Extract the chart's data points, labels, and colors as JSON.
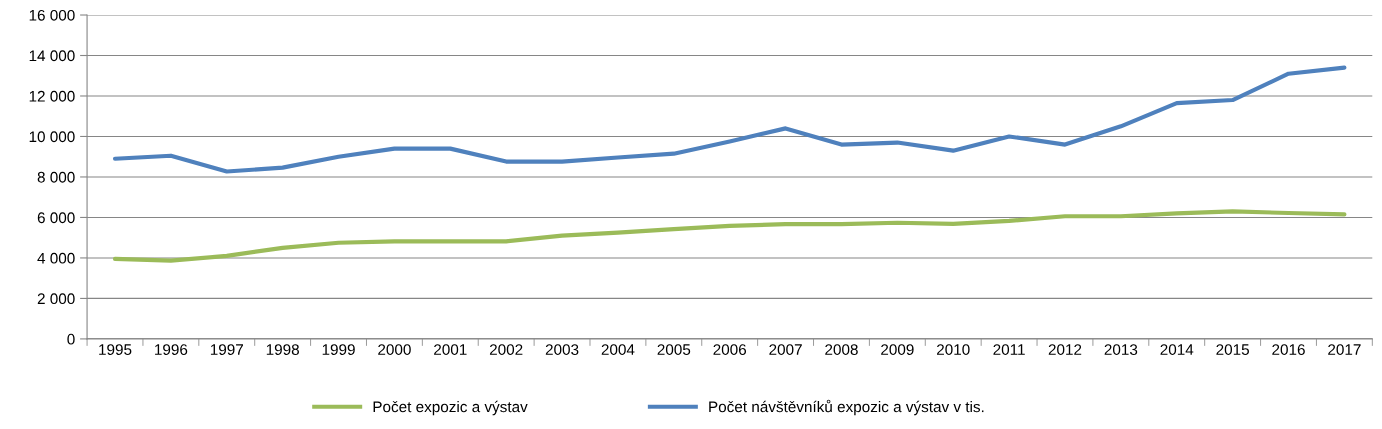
{
  "chart_data": {
    "type": "line",
    "categories": [
      "1995",
      "1996",
      "1997",
      "1998",
      "1999",
      "2000",
      "2001",
      "2002",
      "2003",
      "2004",
      "2005",
      "2006",
      "2007",
      "2008",
      "2009",
      "2010",
      "2011",
      "2012",
      "2013",
      "2014",
      "2015",
      "2016",
      "2017"
    ],
    "series": [
      {
        "name": "Počet expozic a výstav",
        "color": "#9bbb59",
        "values": [
          3950,
          3870,
          4100,
          4500,
          4750,
          4820,
          4820,
          4820,
          5100,
          5250,
          5420,
          5580,
          5670,
          5670,
          5740,
          5680,
          5830,
          6060,
          6060,
          6200,
          6300,
          6220,
          6150
        ]
      },
      {
        "name": "Počet návštěvníků expozic a výstav v tis.",
        "color": "#4f81bd",
        "values": [
          8900,
          9050,
          8270,
          8460,
          9000,
          9400,
          9400,
          8760,
          8760,
          8960,
          9150,
          9750,
          10400,
          9600,
          9700,
          9300,
          10000,
          9600,
          10500,
          11650,
          11800,
          13100,
          13400
        ]
      }
    ],
    "ylim": [
      0,
      16000
    ],
    "yticks": [
      {
        "value": 0,
        "label": "0"
      },
      {
        "value": 2000,
        "label": "2 000"
      },
      {
        "value": 4000,
        "label": "4 000"
      },
      {
        "value": 6000,
        "label": "6 000"
      },
      {
        "value": 8000,
        "label": "8 000"
      },
      {
        "value": 10000,
        "label": "10 000"
      },
      {
        "value": 12000,
        "label": "12 000"
      },
      {
        "value": 14000,
        "label": "14 000"
      },
      {
        "value": 16000,
        "label": "16 000"
      }
    ],
    "grid": "y",
    "legend": "bottom",
    "marker": "none",
    "line_style": "solid"
  }
}
